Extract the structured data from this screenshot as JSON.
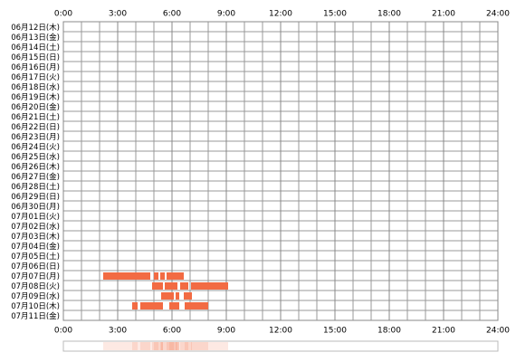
{
  "chart_data": {
    "type": "timeline",
    "categories": [
      "06月12日(木)",
      "06月13日(金)",
      "06月14日(土)",
      "06月15日(日)",
      "06月16日(月)",
      "06月17日(火)",
      "06月18日(水)",
      "06月19日(木)",
      "06月20日(金)",
      "06月21日(土)",
      "06月22日(日)",
      "06月23日(月)",
      "06月24日(火)",
      "06月25日(水)",
      "06月26日(木)",
      "06月27日(金)",
      "06月28日(土)",
      "06月29日(日)",
      "06月30日(月)",
      "07月01日(火)",
      "07月02日(水)",
      "07月03日(木)",
      "07月04日(金)",
      "07月05日(土)",
      "07月06日(日)",
      "07月07日(月)",
      "07月08日(火)",
      "07月09日(水)",
      "07月10日(木)",
      "07月11日(金)"
    ],
    "values": [
      [],
      [],
      [],
      [],
      [],
      [],
      [],
      [],
      [],
      [],
      [],
      [],
      [],
      [],
      [],
      [],
      [],
      [],
      [],
      [],
      [],
      [],
      [],
      [],
      [],
      [
        [
          2.2,
          4.8
        ],
        [
          5.0,
          5.25
        ],
        [
          5.35,
          5.6
        ],
        [
          5.7,
          6.65
        ]
      ],
      [
        [
          4.9,
          5.5
        ],
        [
          5.6,
          6.3
        ],
        [
          6.45,
          6.9
        ],
        [
          7.05,
          9.1
        ]
      ],
      [
        [
          5.4,
          6.1
        ],
        [
          6.2,
          6.4
        ],
        [
          6.65,
          7.1
        ]
      ],
      [
        [
          3.8,
          4.1
        ],
        [
          4.25,
          5.5
        ],
        [
          5.85,
          6.4
        ],
        [
          6.7,
          8.0
        ]
      ],
      []
    ],
    "color": "#f26b43",
    "xlim": [
      0,
      24
    ],
    "xticks": [
      {
        "value": 0,
        "label": "0:00"
      },
      {
        "value": 3,
        "label": "3:00"
      },
      {
        "value": 6,
        "label": "6:00"
      },
      {
        "value": 9,
        "label": "9:00"
      },
      {
        "value": 12,
        "label": "12:00"
      },
      {
        "value": 15,
        "label": "15:00"
      },
      {
        "value": 18,
        "label": "18:00"
      },
      {
        "value": 21,
        "label": "21:00"
      },
      {
        "value": 24,
        "label": "24:00"
      }
    ],
    "grid": true
  }
}
